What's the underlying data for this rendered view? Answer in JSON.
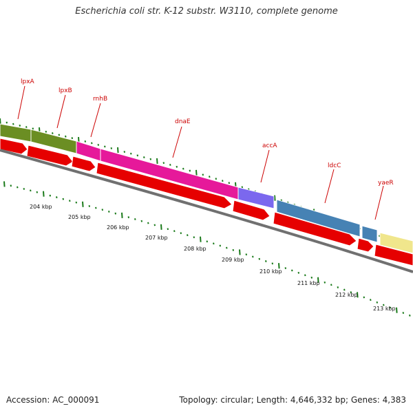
{
  "title": "Escherichia coli str. K-12 substr. W3110, complete genome",
  "footer": {
    "accession": "Accession: AC_000091",
    "summary": "Topology: circular; Length: 4,646,332 bp; Genes: 4,383"
  },
  "colors": {
    "gene_label": "#cc0000",
    "cds_arrow": "#e60000",
    "backbone": "#707070",
    "tick": "#1a7a1a"
  },
  "genes": [
    {
      "name": "lpxA",
      "color": "#6b8e23"
    },
    {
      "name": "lpxB",
      "color": "#6b8e23"
    },
    {
      "name": "rnhB",
      "color": "#e6199a"
    },
    {
      "name": "dnaE",
      "color": "#e6199a"
    },
    {
      "name": "accA",
      "color": "#7b68ee"
    },
    {
      "name": "ldcC",
      "color": "#4682b4"
    },
    {
      "name": "yaeR",
      "color": "#f0e68c"
    }
  ],
  "ruler_labels": [
    "204 kbp",
    "205 kbp",
    "206 kbp",
    "207 kbp",
    "208 kbp",
    "209 kbp",
    "210 kbp",
    "211 kbp",
    "212 kbp",
    "213 kbp"
  ]
}
